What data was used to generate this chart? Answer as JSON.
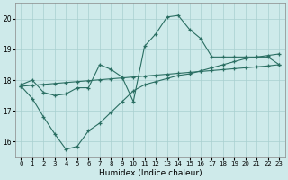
{
  "title": "",
  "xlabel": "Humidex (Indice chaleur)",
  "bg_color": "#ceeaea",
  "line_color": "#2a6e62",
  "grid_color": "#a8cfcf",
  "xlim": [
    -0.5,
    23.5
  ],
  "ylim": [
    15.5,
    20.5
  ],
  "yticks": [
    16,
    17,
    18,
    19,
    20
  ],
  "xticks": [
    0,
    1,
    2,
    3,
    4,
    5,
    6,
    7,
    8,
    9,
    10,
    11,
    12,
    13,
    14,
    15,
    16,
    17,
    18,
    19,
    20,
    21,
    22,
    23
  ],
  "series1_x": [
    0,
    1,
    2,
    3,
    4,
    5,
    6,
    7,
    8,
    9,
    10,
    11,
    12,
    13,
    14,
    15,
    16,
    17,
    18,
    19,
    20,
    21,
    22,
    23
  ],
  "series1_y": [
    17.85,
    18.0,
    17.6,
    17.5,
    17.55,
    17.75,
    17.75,
    18.5,
    18.35,
    18.1,
    17.3,
    19.1,
    19.5,
    20.05,
    20.1,
    19.65,
    19.35,
    18.75,
    18.75,
    18.75,
    18.75,
    18.75,
    18.75,
    18.5
  ],
  "series2_x": [
    0,
    1,
    2,
    3,
    4,
    5,
    6,
    7,
    8,
    9,
    10,
    11,
    12,
    13,
    14,
    15,
    16,
    17,
    18,
    19,
    20,
    21,
    22,
    23
  ],
  "series2_y": [
    17.8,
    17.83,
    17.86,
    17.89,
    17.92,
    17.95,
    17.98,
    18.01,
    18.04,
    18.07,
    18.1,
    18.13,
    18.16,
    18.19,
    18.22,
    18.25,
    18.28,
    18.31,
    18.34,
    18.37,
    18.4,
    18.43,
    18.46,
    18.5
  ],
  "series3_x": [
    0,
    1,
    2,
    3,
    4,
    5,
    6,
    7,
    8,
    9,
    10,
    11,
    12,
    13,
    14,
    15,
    16,
    17,
    18,
    19,
    20,
    21,
    22,
    23
  ],
  "series3_y": [
    17.8,
    17.4,
    16.8,
    16.25,
    15.75,
    15.85,
    16.35,
    16.6,
    16.95,
    17.3,
    17.65,
    17.85,
    17.95,
    18.05,
    18.15,
    18.2,
    18.3,
    18.4,
    18.5,
    18.6,
    18.7,
    18.75,
    18.8,
    18.85
  ]
}
